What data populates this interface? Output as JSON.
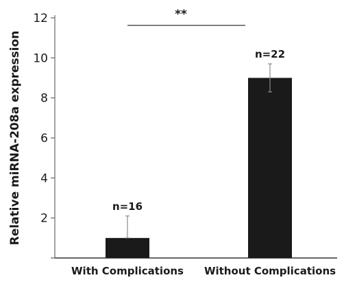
{
  "chart_data": {
    "type": "bar",
    "categories": [
      "With Complications",
      "Without Complications"
    ],
    "values": [
      1.0,
      9.0
    ],
    "error_low": [
      1.0,
      8.3
    ],
    "error_high": [
      2.1,
      9.7
    ],
    "bar_labels": [
      "n=16",
      "n=22"
    ],
    "title": "",
    "xlabel": "",
    "ylabel": "Relative miRNA-208a expression",
    "ylim": [
      0,
      12
    ],
    "yticks": [
      2,
      4,
      6,
      8,
      10,
      12
    ],
    "significance": {
      "label": "**",
      "between": [
        0,
        1
      ]
    },
    "grid": false,
    "bar_color": "#1a1a1a"
  }
}
